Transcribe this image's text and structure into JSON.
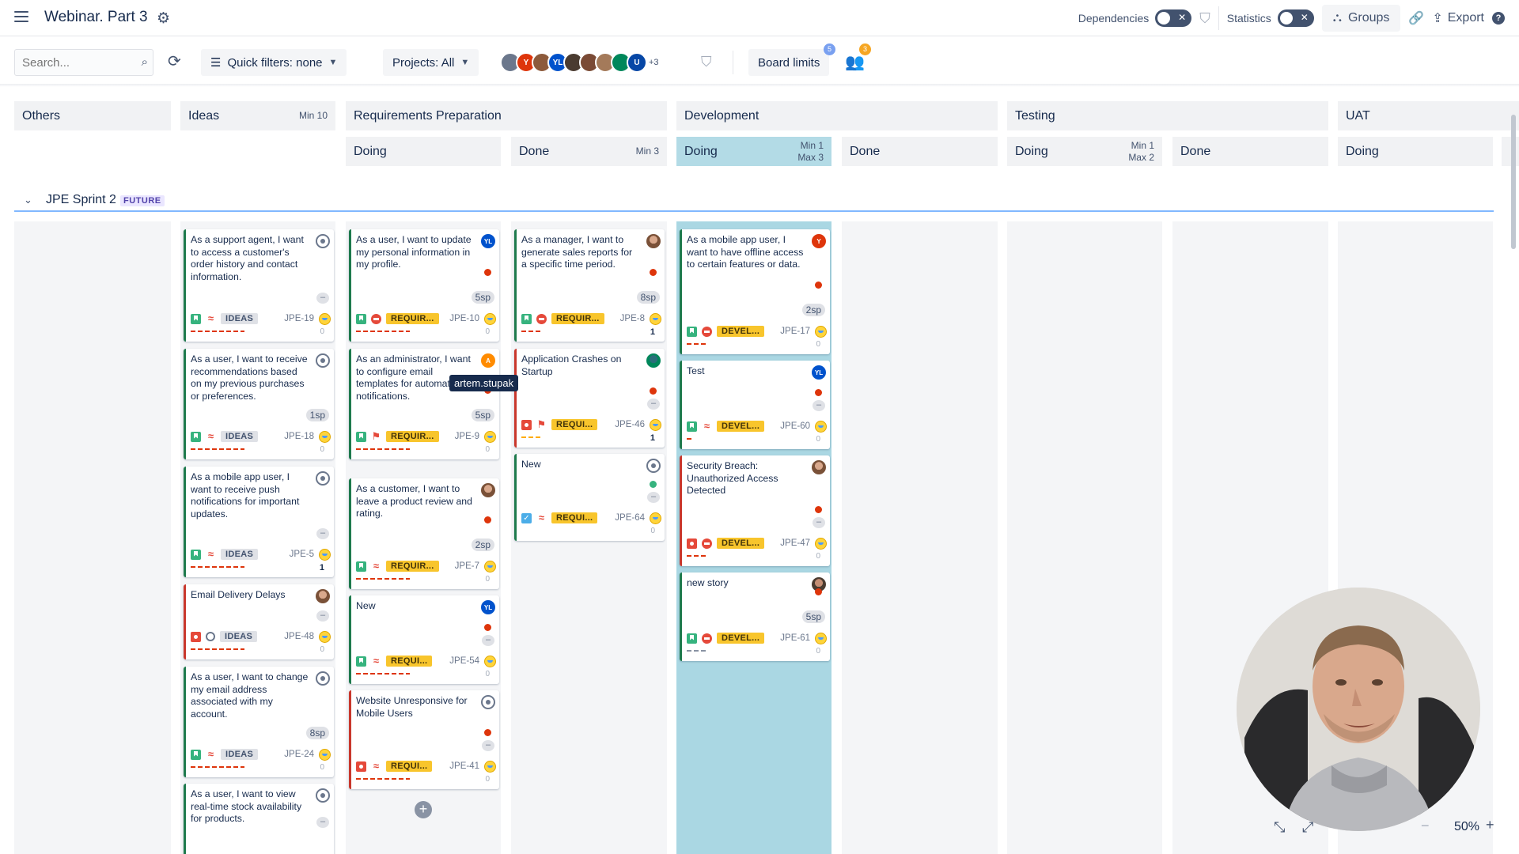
{
  "header": {
    "title": "Webinar. Part 3",
    "dependencies_label": "Dependencies",
    "statistics_label": "Statistics",
    "groups_label": "Groups",
    "export_label": "Export"
  },
  "toolbar": {
    "search_placeholder": "Search...",
    "quick_filters_label": "Quick filters: none",
    "projects_label": "Projects: All",
    "avatar_more": "+3",
    "board_limits_label": "Board limits",
    "board_limits_badge": "5",
    "people_badge": "3",
    "avatars": [
      {
        "initials": "",
        "color": "#6b778c"
      },
      {
        "initials": "Y",
        "color": "#de350b"
      },
      {
        "initials": "",
        "color": "#8d5a3b"
      },
      {
        "initials": "YL",
        "color": "#0052cc"
      },
      {
        "initials": "",
        "color": "#4a3b30"
      },
      {
        "initials": "",
        "color": "#7a4a35"
      },
      {
        "initials": "",
        "color": "#a47a5a"
      },
      {
        "initials": "",
        "color": "#00875a"
      },
      {
        "initials": "U",
        "color": "#0747a6"
      }
    ]
  },
  "columns": {
    "others": "Others",
    "ideas": {
      "label": "Ideas",
      "limit": "Min 10"
    },
    "requirements": "Requirements Preparation",
    "development": "Development",
    "testing": "Testing",
    "uat": "UAT",
    "sub": {
      "req_doing": "Doing",
      "req_done": "Done",
      "req_done_limit": "Min 3",
      "dev_doing": "Doing",
      "dev_doing_min": "Min 1",
      "dev_doing_max": "Max 3",
      "dev_done": "Done",
      "test_doing": "Doing",
      "test_doing_min": "Min 1",
      "test_doing_max": "Max 2",
      "test_done": "Done",
      "uat_doing": "Doing"
    }
  },
  "swimlane": {
    "name": "JPE Sprint 2",
    "tag": "FUTURE"
  },
  "tooltip": "artem.stupak",
  "zoom": "50%",
  "cards": {
    "ideas": [
      {
        "summary": "As a support agent, I want to access a customer's order history and contact information.",
        "status": "IDEAS",
        "key": "JPE-19",
        "num": "0",
        "sp": ""
      },
      {
        "summary": "As a user, I want to receive recommendations based on my previous purchases or preferences.",
        "status": "IDEAS",
        "key": "JPE-18",
        "num": "0",
        "sp": "1sp"
      },
      {
        "summary": "As a mobile app user, I want to receive push notifications for important updates.",
        "status": "IDEAS",
        "key": "JPE-5",
        "num": "1",
        "sp": ""
      },
      {
        "summary": "Email Delivery Delays",
        "status": "IDEAS",
        "key": "JPE-48",
        "num": "0",
        "sp": ""
      },
      {
        "summary": "As a user, I want to change my email address associated with my account.",
        "status": "IDEAS",
        "key": "JPE-24",
        "num": "0",
        "sp": "8sp"
      },
      {
        "summary": "As a user, I want to view real-time stock availability for products.",
        "status": "",
        "key": "",
        "num": "",
        "sp": ""
      }
    ],
    "req_doing": [
      {
        "summary": "As a user, I want to update my personal information in my profile.",
        "status": "REQUIR...",
        "key": "JPE-10",
        "num": "0",
        "sp": "5sp",
        "who": "YL"
      },
      {
        "summary": "As an administrator, I want to configure email templates for automated notifications.",
        "status": "REQUIR...",
        "key": "JPE-9",
        "num": "0",
        "sp": "5sp",
        "who": "A"
      },
      {
        "summary": "As a customer, I want to leave a product review and rating.",
        "status": "REQUIR...",
        "key": "JPE-7",
        "num": "0",
        "sp": "2sp"
      },
      {
        "summary": "New",
        "status": "REQUI...",
        "key": "JPE-54",
        "num": "0",
        "sp": "",
        "who": "YL"
      },
      {
        "summary": "Website Unresponsive for Mobile Users",
        "status": "REQUI...",
        "key": "JPE-41",
        "num": "0",
        "sp": ""
      }
    ],
    "req_done": [
      {
        "summary": "As a manager, I want to generate sales reports for a specific time period.",
        "status": "REQUIR...",
        "key": "JPE-8",
        "num": "1",
        "sp": "8sp"
      },
      {
        "summary": "Application Crashes on Startup",
        "status": "REQUI...",
        "key": "JPE-46",
        "num": "1",
        "sp": ""
      },
      {
        "summary": "New",
        "status": "REQUI...",
        "key": "JPE-64",
        "num": "0",
        "sp": ""
      }
    ],
    "dev_doing": [
      {
        "summary": "As a mobile app user, I want to have offline access to certain features or data.",
        "status": "DEVEL...",
        "key": "JPE-17",
        "num": "0",
        "sp": "2sp",
        "who": "Y"
      },
      {
        "summary": "Test",
        "status": "DEVEL...",
        "key": "JPE-60",
        "num": "0",
        "sp": "",
        "who": "YL"
      },
      {
        "summary": "Security Breach: Unauthorized Access Detected",
        "status": "DEVEL...",
        "key": "JPE-47",
        "num": "0",
        "sp": ""
      },
      {
        "summary": "new story",
        "status": "DEVEL...",
        "key": "JPE-61",
        "num": "0",
        "sp": "5sp"
      }
    ]
  },
  "colors": {
    "story": "#36b37e",
    "bug": "#e5493a",
    "status_chip": "#f8c52c",
    "active_column": "#aad7e3",
    "swimlane_line": "#4c9aff"
  }
}
